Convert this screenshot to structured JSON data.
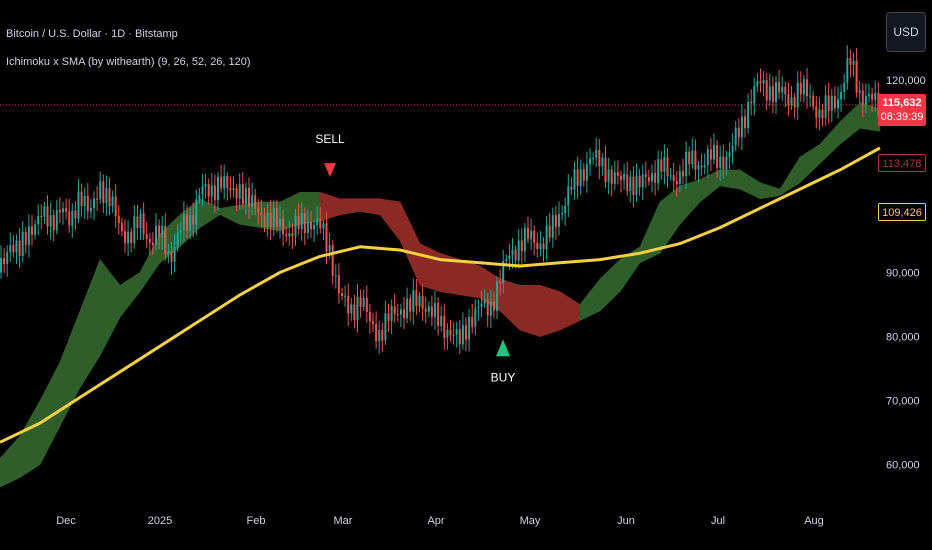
{
  "legend": {
    "symbol": "Bitcoin / U.S. Dollar · 1D · Bitstamp",
    "indicator": "Ichimoku x SMA (by withearth) (9, 26, 52, 26, 120)"
  },
  "currency": "USD",
  "tags": {
    "price": "115,632",
    "countdown": "08:39:39",
    "prev": "113,478",
    "sma": "109,426"
  },
  "colors": {
    "background": "#000000",
    "candle_up": "#26a69a",
    "candle_down": "#ef5350",
    "sma": "#f5d142",
    "cloud_bull": "#2f5e2a",
    "cloud_bear": "#8b2a24",
    "signal_sell": "#f23645",
    "signal_buy": "#22c47e",
    "price_line": "#f23645"
  },
  "chart_data": {
    "type": "line",
    "title": "Bitcoin / U.S. Dollar · 1D · Bitstamp",
    "x_ticks": [
      "Dec",
      "2025",
      "Feb",
      "Mar",
      "Apr",
      "May",
      "Jun",
      "Jul",
      "Aug"
    ],
    "y_ticks": [
      120000,
      90000,
      80000,
      70000,
      60000
    ],
    "ylim": [
      54500,
      132500
    ],
    "y_axis_labels": [
      "120,000",
      "90,000",
      "80,000",
      "70,000",
      "60,000"
    ],
    "last_price": 115632,
    "close_path": [
      [
        0,
        90000
      ],
      [
        10,
        95000
      ],
      [
        20,
        93000
      ],
      [
        30,
        97000
      ],
      [
        40,
        99000
      ],
      [
        50,
        97500
      ],
      [
        60,
        100500
      ],
      [
        70,
        97000
      ],
      [
        80,
        103000
      ],
      [
        90,
        98500
      ],
      [
        100,
        104000
      ],
      [
        110,
        101000
      ],
      [
        120,
        97000
      ],
      [
        130,
        95500
      ],
      [
        140,
        98000
      ],
      [
        150,
        95000
      ],
      [
        160,
        96000
      ],
      [
        170,
        92500
      ],
      [
        180,
        96500
      ],
      [
        190,
        98000
      ],
      [
        200,
        103000
      ],
      [
        210,
        102000
      ],
      [
        220,
        105000
      ],
      [
        230,
        102000
      ],
      [
        240,
        103500
      ],
      [
        250,
        100500
      ],
      [
        260,
        99500
      ],
      [
        270,
        98000
      ],
      [
        280,
        97500
      ],
      [
        290,
        96000
      ],
      [
        300,
        97500
      ],
      [
        310,
        98000
      ],
      [
        320,
        97000
      ],
      [
        330,
        93500
      ],
      [
        340,
        86000
      ],
      [
        350,
        84000
      ],
      [
        360,
        86000
      ],
      [
        370,
        82000
      ],
      [
        380,
        80500
      ],
      [
        390,
        83000
      ],
      [
        400,
        84500
      ],
      [
        410,
        84500
      ],
      [
        420,
        86000
      ],
      [
        430,
        84000
      ],
      [
        440,
        82000
      ],
      [
        450,
        81000
      ],
      [
        460,
        79000
      ],
      [
        470,
        83000
      ],
      [
        480,
        84500
      ],
      [
        490,
        84500
      ],
      [
        500,
        89000
      ],
      [
        510,
        93000
      ],
      [
        520,
        94500
      ],
      [
        530,
        95500
      ],
      [
        540,
        94500
      ],
      [
        550,
        96000
      ],
      [
        560,
        99500
      ],
      [
        570,
        103000
      ],
      [
        580,
        105000
      ],
      [
        590,
        108000
      ],
      [
        600,
        107000
      ],
      [
        610,
        105500
      ],
      [
        620,
        104000
      ],
      [
        630,
        104500
      ],
      [
        640,
        103500
      ],
      [
        650,
        105000
      ],
      [
        660,
        107000
      ],
      [
        670,
        104500
      ],
      [
        680,
        105500
      ],
      [
        690,
        107500
      ],
      [
        700,
        107000
      ],
      [
        710,
        108000
      ],
      [
        720,
        107500
      ],
      [
        730,
        108500
      ],
      [
        740,
        112500
      ],
      [
        750,
        117000
      ],
      [
        760,
        119500
      ],
      [
        770,
        118500
      ],
      [
        780,
        118000
      ],
      [
        790,
        117000
      ],
      [
        800,
        118500
      ],
      [
        810,
        117500
      ],
      [
        820,
        114500
      ],
      [
        830,
        116000
      ],
      [
        840,
        118000
      ],
      [
        850,
        123000
      ],
      [
        860,
        118000
      ],
      [
        870,
        117000
      ],
      [
        880,
        115632
      ]
    ],
    "sma_path": [
      [
        0,
        63500
      ],
      [
        40,
        66500
      ],
      [
        80,
        70500
      ],
      [
        120,
        74500
      ],
      [
        160,
        78500
      ],
      [
        200,
        82500
      ],
      [
        240,
        86500
      ],
      [
        280,
        90000
      ],
      [
        320,
        92500
      ],
      [
        360,
        94000
      ],
      [
        400,
        93500
      ],
      [
        440,
        92000
      ],
      [
        480,
        91500
      ],
      [
        520,
        91000
      ],
      [
        560,
        91500
      ],
      [
        600,
        92000
      ],
      [
        640,
        93000
      ],
      [
        680,
        94500
      ],
      [
        720,
        97000
      ],
      [
        760,
        100000
      ],
      [
        800,
        103000
      ],
      [
        840,
        106000
      ],
      [
        880,
        109426
      ]
    ],
    "cloud_upper_path": [
      [
        0,
        61000
      ],
      [
        20,
        64500
      ],
      [
        40,
        70000
      ],
      [
        60,
        76000
      ],
      [
        80,
        84000
      ],
      [
        100,
        92000
      ],
      [
        120,
        88000
      ],
      [
        140,
        90000
      ],
      [
        160,
        96000
      ],
      [
        180,
        99000
      ],
      [
        200,
        101500
      ],
      [
        220,
        100000
      ],
      [
        240,
        100500
      ],
      [
        260,
        101000
      ],
      [
        280,
        101000
      ],
      [
        300,
        102500
      ],
      [
        320,
        102500
      ],
      [
        340,
        101500
      ],
      [
        360,
        101500
      ],
      [
        380,
        101500
      ],
      [
        400,
        101000
      ],
      [
        420,
        94500
      ],
      [
        440,
        93000
      ],
      [
        460,
        92000
      ],
      [
        480,
        91000
      ],
      [
        500,
        89000
      ],
      [
        520,
        88000
      ],
      [
        540,
        88000
      ],
      [
        560,
        87000
      ],
      [
        580,
        85000
      ],
      [
        600,
        89000
      ],
      [
        620,
        92000
      ],
      [
        640,
        94000
      ],
      [
        660,
        101000
      ],
      [
        680,
        103500
      ],
      [
        700,
        104500
      ],
      [
        720,
        106000
      ],
      [
        740,
        106000
      ],
      [
        760,
        104000
      ],
      [
        780,
        103000
      ],
      [
        800,
        108000
      ],
      [
        820,
        110000
      ],
      [
        840,
        113500
      ],
      [
        860,
        116500
      ],
      [
        880,
        115500
      ]
    ],
    "cloud_lower_path": [
      [
        0,
        56500
      ],
      [
        20,
        58000
      ],
      [
        40,
        60000
      ],
      [
        60,
        66000
      ],
      [
        80,
        72000
      ],
      [
        100,
        77000
      ],
      [
        120,
        83000
      ],
      [
        140,
        87000
      ],
      [
        160,
        91500
      ],
      [
        180,
        94000
      ],
      [
        200,
        97000
      ],
      [
        220,
        99000
      ],
      [
        240,
        97500
      ],
      [
        260,
        97000
      ],
      [
        280,
        96500
      ],
      [
        300,
        97500
      ],
      [
        320,
        98000
      ],
      [
        340,
        99000
      ],
      [
        360,
        99500
      ],
      [
        380,
        99000
      ],
      [
        400,
        95000
      ],
      [
        420,
        88000
      ],
      [
        440,
        87000
      ],
      [
        460,
        86500
      ],
      [
        480,
        86000
      ],
      [
        500,
        84000
      ],
      [
        520,
        81000
      ],
      [
        540,
        80000
      ],
      [
        560,
        81000
      ],
      [
        580,
        82500
      ],
      [
        600,
        84000
      ],
      [
        620,
        87000
      ],
      [
        640,
        91500
      ],
      [
        660,
        93000
      ],
      [
        680,
        97500
      ],
      [
        700,
        101000
      ],
      [
        720,
        103500
      ],
      [
        740,
        103000
      ],
      [
        760,
        101500
      ],
      [
        780,
        102000
      ],
      [
        800,
        104000
      ],
      [
        820,
        107000
      ],
      [
        840,
        110000
      ],
      [
        860,
        112500
      ],
      [
        880,
        112000
      ]
    ],
    "signals": [
      {
        "label": "SELL",
        "type": "sell",
        "x": 330,
        "value": 103000
      },
      {
        "label": "BUY",
        "type": "buy",
        "x": 503,
        "value": 80500
      }
    ]
  }
}
